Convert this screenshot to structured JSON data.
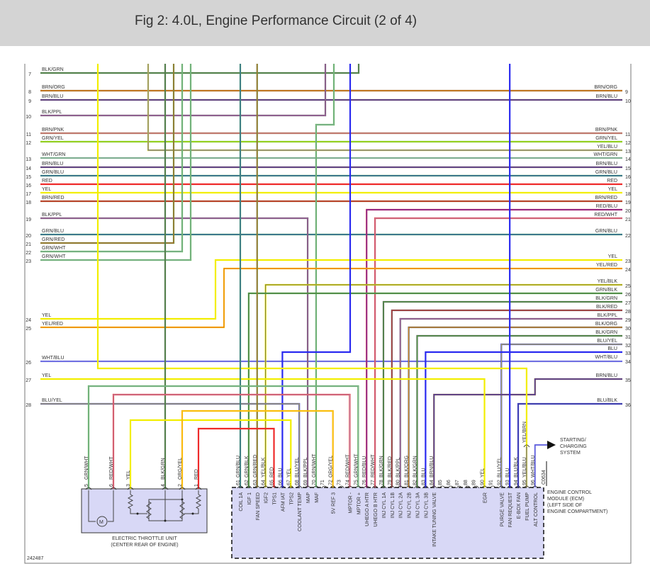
{
  "header": {
    "title": "Fig 2: 4.0L, Engine Performance Circuit (2 of 4)"
  },
  "diagram_id": "242487",
  "left_rows": [
    {
      "num": "7",
      "label": "BLK/GRN"
    },
    {
      "num": "8",
      "label": "BRN/ORG"
    },
    {
      "num": "9",
      "label": "BRN/BLU"
    },
    {
      "num": "10",
      "label": "BLK/PPL"
    },
    {
      "num": "11",
      "label": "BRN/PNK"
    },
    {
      "num": "12",
      "label": "GRN/YEL"
    },
    {
      "num": "13",
      "label": "WHT/GRN"
    },
    {
      "num": "14",
      "label": "BRN/BLU"
    },
    {
      "num": "15",
      "label": "GRN/BLU"
    },
    {
      "num": "16",
      "label": "RED"
    },
    {
      "num": "17",
      "label": "YEL"
    },
    {
      "num": "18",
      "label": "BRN/RED"
    },
    {
      "num": "19",
      "label": "BLK/PPL"
    },
    {
      "num": "20",
      "label": "GRN/BLU"
    },
    {
      "num": "21",
      "label": "GRN/RED"
    },
    {
      "num": "22",
      "label": "GRN/WHT"
    },
    {
      "num": "23",
      "label": "GRN/WHT"
    },
    {
      "num": "24",
      "label": "YEL"
    },
    {
      "num": "25",
      "label": "YEL/RED"
    },
    {
      "num": "26",
      "label": "WHT/BLU"
    },
    {
      "num": "27",
      "label": "YEL"
    },
    {
      "num": "28",
      "label": "BLU/YEL"
    }
  ],
  "right_rows": [
    {
      "num": "9",
      "label": "BRN/ORG"
    },
    {
      "num": "10",
      "label": "BRN/BLU"
    },
    {
      "num": "11",
      "label": "BRN/PNK"
    },
    {
      "num": "12",
      "label": "GRN/YEL"
    },
    {
      "num": "13",
      "label": "YEL/BLU"
    },
    {
      "num": "14",
      "label": "WHT/GRN"
    },
    {
      "num": "15",
      "label": "BRN/BLU"
    },
    {
      "num": "16",
      "label": "GRN/BLU"
    },
    {
      "num": "17",
      "label": "RED"
    },
    {
      "num": "18",
      "label": "YEL"
    },
    {
      "num": "19",
      "label": "BRN/RED"
    },
    {
      "num": "20",
      "label": "RED/BLU"
    },
    {
      "num": "21",
      "label": "RED/WHT"
    },
    {
      "num": "22",
      "label": "GRN/BLU"
    },
    {
      "num": "23",
      "label": "YEL"
    },
    {
      "num": "24",
      "label": "YEL/RED"
    },
    {
      "num": "25",
      "label": "YEL/BLK"
    },
    {
      "num": "26",
      "label": "GRN/BLK"
    },
    {
      "num": "27",
      "label": "BLK/GRN"
    },
    {
      "num": "28",
      "label": "BLK/RED"
    },
    {
      "num": "29",
      "label": "BLK/PPL"
    },
    {
      "num": "30",
      "label": "BLK/ORG"
    },
    {
      "num": "31",
      "label": "BLK/GRN"
    },
    {
      "num": "32",
      "label": "BLU/YEL"
    },
    {
      "num": "33",
      "label": "BLU"
    },
    {
      "num": "34",
      "label": "WHT/BLU"
    },
    {
      "num": "35",
      "label": "BRN/BLU"
    },
    {
      "num": "36",
      "label": "BLU/BLK"
    }
  ],
  "ecm": {
    "label": [
      "ENGINE CONTROL",
      "MODULE (ECM)",
      "(LEFT SIDE OF",
      "ENGINE COMPARTMENT)"
    ],
    "connector": "C0634",
    "pins": [
      {
        "num": "61",
        "wire": "GRN/BLU",
        "func": "COIL 1A"
      },
      {
        "num": "62",
        "wire": "GRN/BLK",
        "func": "IGF 1"
      },
      {
        "num": "63",
        "wire": "GRN/RED",
        "func": "FAN SPEED"
      },
      {
        "num": "64",
        "wire": "YEL/BLK",
        "func": "IGF2"
      },
      {
        "num": "65",
        "wire": "RED",
        "func": "TPS1"
      },
      {
        "num": "66",
        "wire": "BLU",
        "func": "AFM IAT"
      },
      {
        "num": "67",
        "wire": "YEL",
        "func": "TPS2"
      },
      {
        "num": "68",
        "wire": "BLU/YEL",
        "func": "COOLANT TEMP"
      },
      {
        "num": "69",
        "wire": "BLK/PPL",
        "func": "MAP"
      },
      {
        "num": "70",
        "wire": "GRN/WHT",
        "func": "MAF"
      },
      {
        "num": "71",
        "wire": "",
        "func": ""
      },
      {
        "num": "72",
        "wire": "ORG/YEL",
        "func": "5V REF 3"
      },
      {
        "num": "73",
        "wire": "",
        "func": ""
      },
      {
        "num": "74",
        "wire": "RED/WHT",
        "func": "MPTOR -"
      },
      {
        "num": "75",
        "wire": "GRN/WHT",
        "func": "MPTOR +"
      },
      {
        "num": "76",
        "wire": "RED/BLU",
        "func": "UHEGO A HTR"
      },
      {
        "num": "77",
        "wire": "RED/WHT",
        "func": "UHEGO B HTR"
      },
      {
        "num": "78",
        "wire": "BLK/GRN",
        "func": "INJ CYL 1A"
      },
      {
        "num": "79",
        "wire": "BLK/RED",
        "func": "INJ CYL 1B"
      },
      {
        "num": "80",
        "wire": "BLK/PPL",
        "func": "INJ CYL 2A"
      },
      {
        "num": "81",
        "wire": "BLK/ORG",
        "func": "INJ CYL 2B"
      },
      {
        "num": "82",
        "wire": "BLK/GRN",
        "func": "INJ CYL 3A"
      },
      {
        "num": "83",
        "wire": "BLU",
        "func": "INJ CYL 3B"
      },
      {
        "num": "84",
        "wire": "BRN/BLU",
        "func": "INTAKE TUNING VALVE"
      },
      {
        "num": "85",
        "wire": "",
        "func": ""
      },
      {
        "num": "86",
        "wire": "",
        "func": ""
      },
      {
        "num": "87",
        "wire": "",
        "func": ""
      },
      {
        "num": "88",
        "wire": "",
        "func": ""
      },
      {
        "num": "89",
        "wire": "",
        "func": ""
      },
      {
        "num": "90",
        "wire": "YEL",
        "func": "EGR"
      },
      {
        "num": "91",
        "wire": "",
        "func": ""
      },
      {
        "num": "92",
        "wire": "BLU/YEL",
        "func": "PURGE VALVE"
      },
      {
        "num": "93",
        "wire": "BLU",
        "func": "FAN REQUEST"
      },
      {
        "num": "94",
        "wire": "BLU/BLK",
        "func": "E-BOX FAN"
      },
      {
        "num": "95",
        "wire": "YEL/BLU",
        "func": "FUEL PUMP"
      },
      {
        "num": "96",
        "wire": "WHT/BLU",
        "func": "ALT CONTROL"
      }
    ],
    "pin95_upstream_wire": "YEL/BRN"
  },
  "throttle": {
    "label": [
      "ELECTRIC THROTTLE UNIT",
      "(CENTER REAR OF ENGINE)"
    ],
    "motor_symbol": "M",
    "pins": [
      {
        "num": "5",
        "wire": "GRN/WHT"
      },
      {
        "num": "6",
        "wire": "RED/WHT"
      },
      {
        "num": "3",
        "wire": "YEL"
      },
      {
        "num": "4",
        "wire": "BLK/GRN"
      },
      {
        "num": "2",
        "wire": "ORG/YEL"
      },
      {
        "num": "1",
        "wire": "RED"
      }
    ]
  },
  "starting_charging": [
    "STARTING/",
    "CHARGING",
    "SYSTEM"
  ],
  "wire_colors": {
    "BLK": "#5a5a5a",
    "GRN": "#4cb83a",
    "BLU": "#2a2af0",
    "RED": "#ee2a2a",
    "YEL": "#f2ee00",
    "BRN": "#8b5a2b",
    "ORG": "#ff9a1a",
    "PPL": "#cc66cc",
    "WHT": "#a8a8d8",
    "PNK": "#ff9ec0"
  },
  "colors": {
    "header_bg": "#d4d4d4",
    "module_fill": "#d8d8f6"
  }
}
